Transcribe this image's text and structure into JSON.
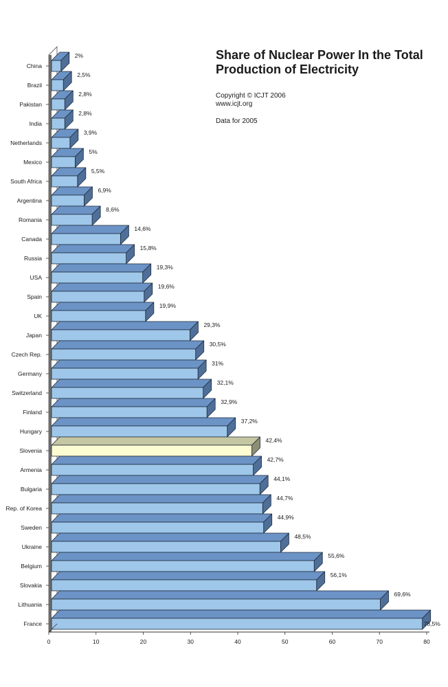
{
  "title": {
    "line1": "Share of Nuclear Power In the Total",
    "line2": "Production of Electricity"
  },
  "copyright": "Copyright © ICJT 2006",
  "website": "www.icjt.org",
  "note": "Data for 2005",
  "colors": {
    "bar_front": "#9ec7ea",
    "bar_top": "#6c93c6",
    "bar_side": "#4f6f99",
    "highlight_front": "#fbfcd2",
    "highlight_top": "#c5c6a2",
    "highlight_side": "#8e8e74",
    "axis": "#333333",
    "wall": "#6c6c6c"
  },
  "chart_data": {
    "type": "bar",
    "orientation": "horizontal",
    "style": "3d",
    "categories": [
      "China",
      "Brazil",
      "Pakistan",
      "India",
      "Netherlands",
      "Mexico",
      "South Africa",
      "Argentina",
      "Romania",
      "Canada",
      "Russia",
      "USA",
      "Spain",
      "UK",
      "Japan",
      "Czech Rep.",
      "Germany",
      "Switzerland",
      "Finland",
      "Hungary",
      "Slovenia",
      "Armenia",
      "Bulgaria",
      "Rep. of Korea",
      "Sweden",
      "Ukraine",
      "Belgium",
      "Slovakia",
      "Lithuania",
      "France"
    ],
    "values": [
      2,
      2.5,
      2.8,
      2.8,
      3.9,
      5,
      5.5,
      6.9,
      8.6,
      14.6,
      15.8,
      19.3,
      19.6,
      19.9,
      29.3,
      30.5,
      31,
      32.1,
      32.9,
      37.2,
      42.4,
      42.7,
      44.1,
      44.7,
      44.9,
      48.5,
      55.6,
      56.1,
      69.6,
      78.5
    ],
    "value_labels": [
      "2%",
      "2,5%",
      "2,8%",
      "2,8%",
      "3,9%",
      "5%",
      "5,5%",
      "6,9%",
      "8,6%",
      "14,6%",
      "15,8%",
      "19,3%",
      "19,6%",
      "19,9%",
      "29,3%",
      "30,5%",
      "31%",
      "32,1%",
      "32,9%",
      "37,2%",
      "42,4%",
      "42,7%",
      "44,1%",
      "44,7%",
      "44,9%",
      "48,5%",
      "55,6%",
      "56,1%",
      "69,6%",
      "78,5%"
    ],
    "highlight": "Slovenia",
    "xlim": [
      0,
      80
    ],
    "xticks": [
      "0",
      "10",
      "20",
      "30",
      "40",
      "50",
      "60",
      "70",
      "80"
    ],
    "grid": false,
    "legend": "none"
  }
}
